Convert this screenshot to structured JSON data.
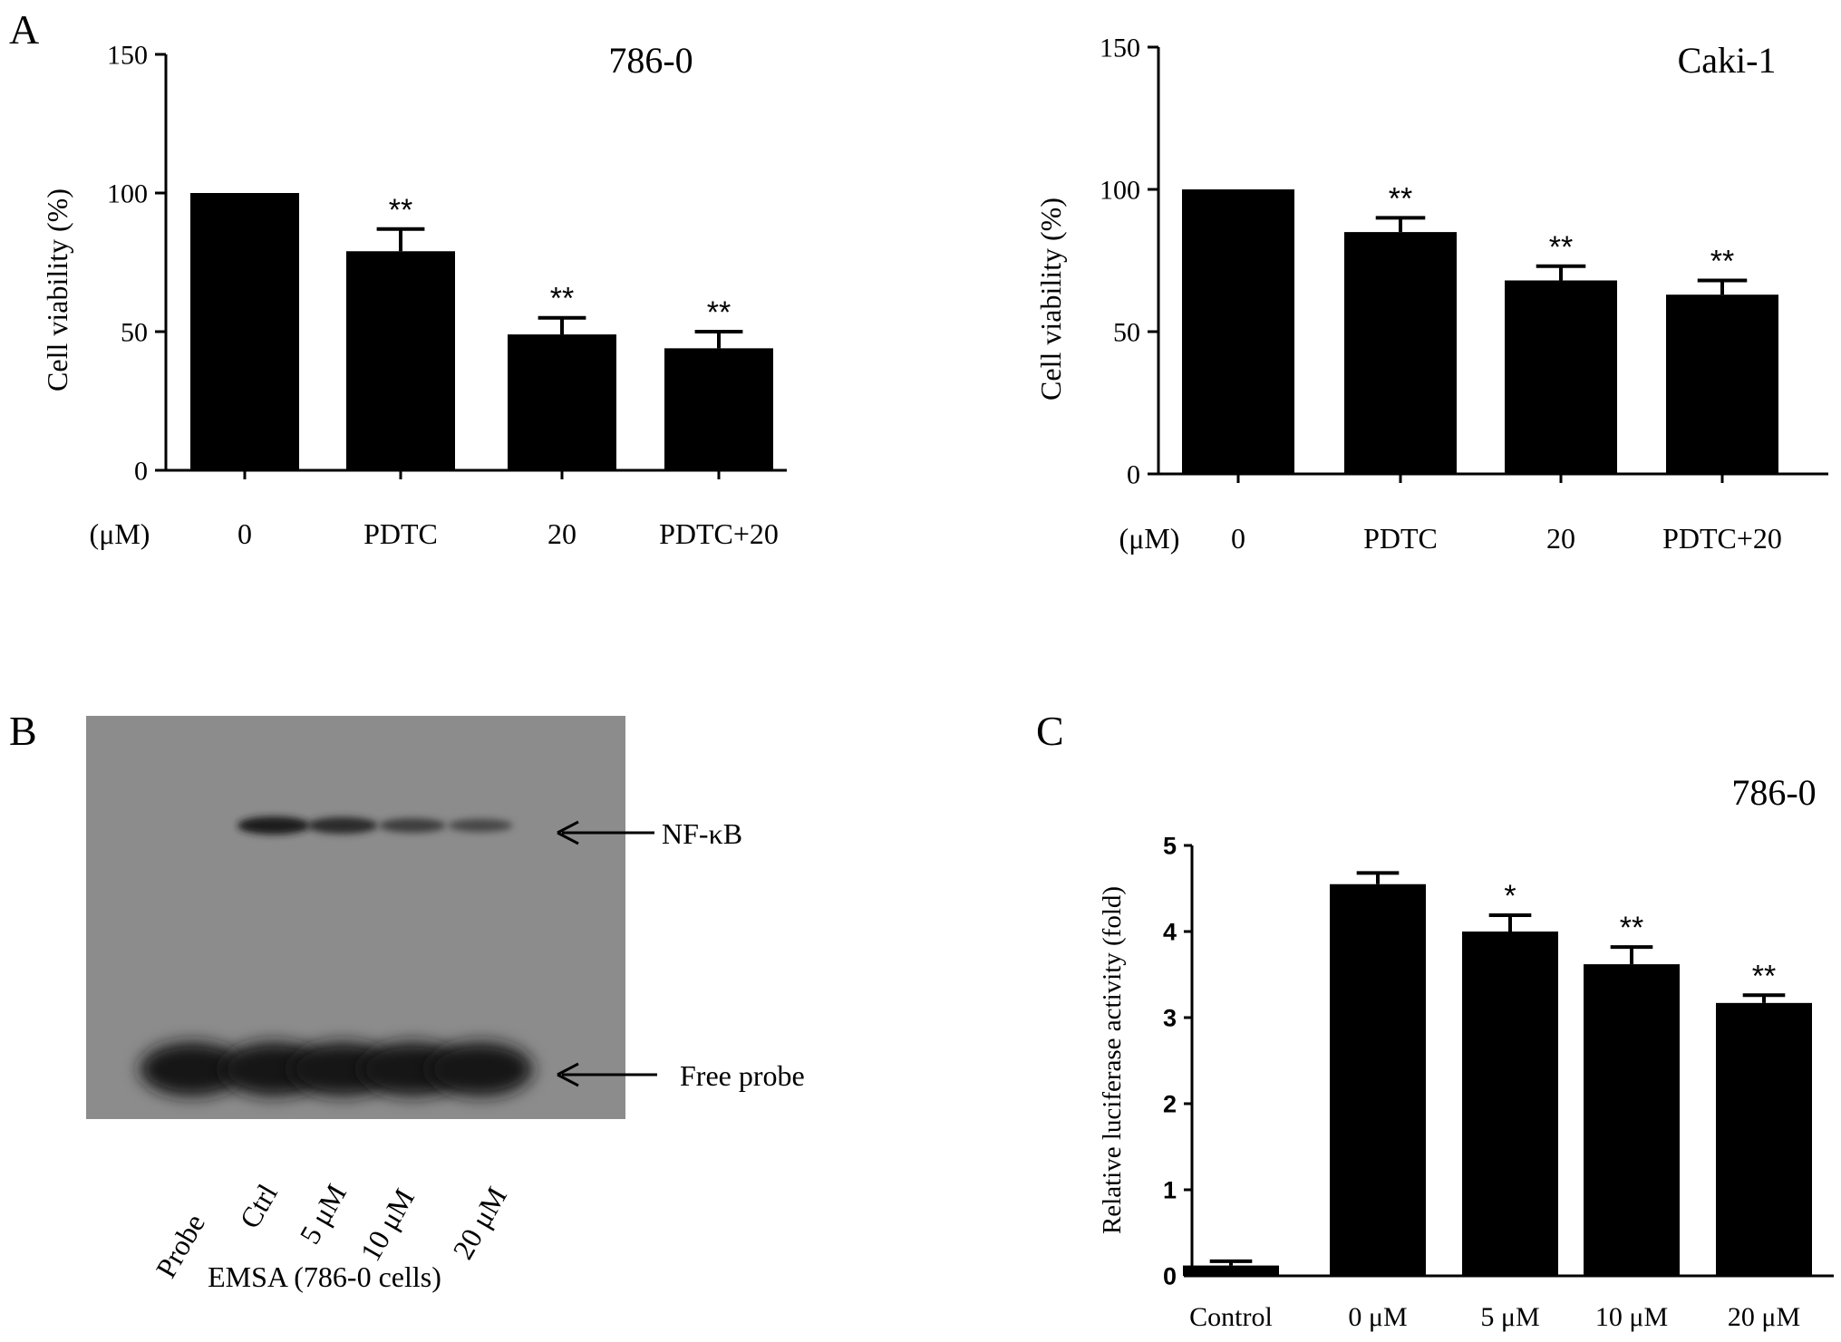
{
  "panel_labels": [
    "A",
    "B",
    "C"
  ],
  "unit_label": "(μM)",
  "chart_data": [
    {
      "type": "bar",
      "panel": "A",
      "title": "786-0",
      "ylabel": "Cell viability (%)",
      "ylim": [
        0,
        150
      ],
      "yticks": [
        "0",
        "50",
        "100",
        "150"
      ],
      "categories": [
        "0",
        "PDTC",
        "20",
        "PDTC+20"
      ],
      "values": [
        100,
        79,
        49,
        44
      ],
      "error_upper": [
        100,
        87,
        55,
        50
      ],
      "annotations": [
        "",
        "**",
        "**",
        "**"
      ]
    },
    {
      "type": "bar",
      "panel": "A",
      "title": "Caki-1",
      "ylabel": "Cell viability (%)",
      "ylim": [
        0,
        150
      ],
      "yticks": [
        "0",
        "50",
        "100",
        "150"
      ],
      "categories": [
        "0",
        "PDTC",
        "20",
        "PDTC+20"
      ],
      "values": [
        100,
        85,
        68,
        63
      ],
      "error_upper": [
        100,
        90,
        73,
        68
      ],
      "annotations": [
        "",
        "**",
        "**",
        "**"
      ]
    },
    {
      "type": "bar",
      "panel": "C",
      "title": "786-0",
      "ylabel": "Relative luciferase activity (fold)",
      "ylim": [
        0,
        5
      ],
      "yticks": [
        "0",
        "1",
        "2",
        "3",
        "4",
        "5"
      ],
      "categories": [
        "Control",
        "0 μM",
        "5 μM",
        "10 μM",
        "20 μM"
      ],
      "values": [
        0.12,
        4.55,
        4.0,
        3.62,
        3.17
      ],
      "error_upper": [
        0.17,
        4.68,
        4.19,
        3.82,
        3.26
      ],
      "annotations": [
        "",
        "",
        "*",
        "**",
        "**"
      ]
    }
  ],
  "emsa": {
    "band_labels": [
      "NF-κB",
      "Free probe"
    ],
    "lanes": [
      "Probe",
      "Ctrl",
      "5 μM",
      "10 μM",
      "20 μM"
    ],
    "nfkb_intensity": [
      0,
      1.0,
      0.85,
      0.6,
      0.45
    ],
    "caption": "EMSA  (786-0 cells)"
  }
}
